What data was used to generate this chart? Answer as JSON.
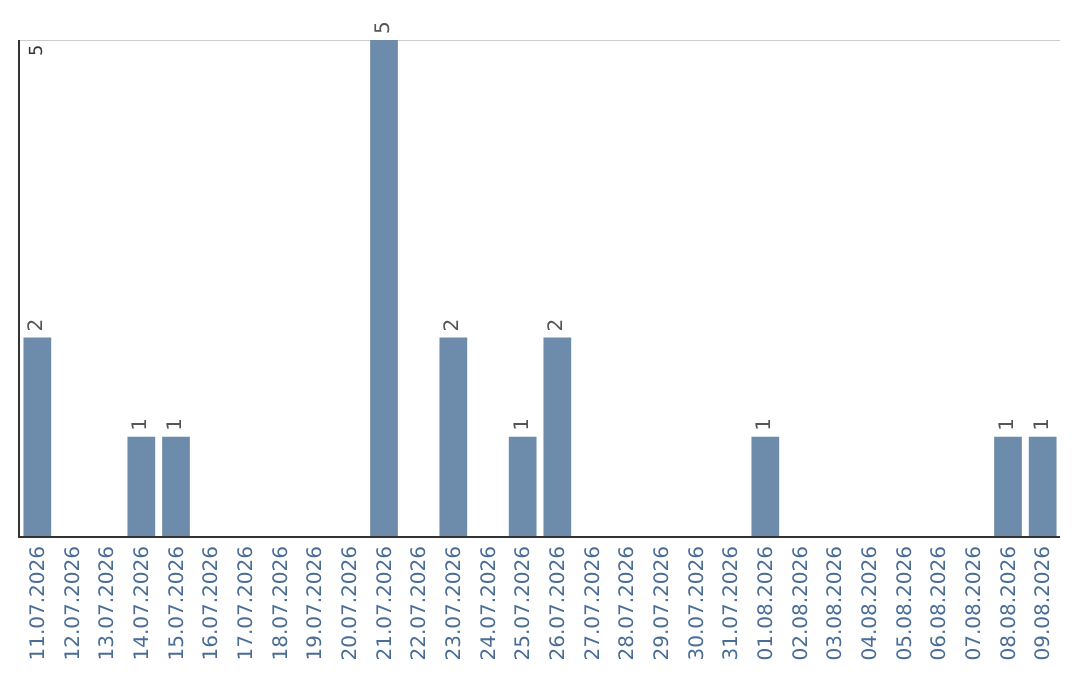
{
  "chart_data": {
    "type": "bar",
    "categories": [
      "11.07.2026",
      "12.07.2026",
      "13.07.2026",
      "14.07.2026",
      "15.07.2026",
      "16.07.2026",
      "17.07.2026",
      "18.07.2026",
      "19.07.2026",
      "20.07.2026",
      "21.07.2026",
      "22.07.2026",
      "23.07.2026",
      "24.07.2026",
      "25.07.2026",
      "26.07.2026",
      "27.07.2026",
      "28.07.2026",
      "29.07.2026",
      "30.07.2026",
      "31.07.2026",
      "01.08.2026",
      "02.08.2026",
      "03.08.2026",
      "04.08.2026",
      "05.08.2026",
      "06.08.2026",
      "07.08.2026",
      "08.08.2026",
      "09.08.2026"
    ],
    "values": [
      2,
      0,
      0,
      1,
      1,
      0,
      0,
      0,
      0,
      0,
      5,
      0,
      2,
      0,
      1,
      2,
      0,
      0,
      0,
      0,
      0,
      1,
      0,
      0,
      0,
      0,
      0,
      0,
      1,
      1
    ],
    "value_labels": [
      "2",
      null,
      null,
      "1",
      "1",
      null,
      null,
      null,
      null,
      null,
      "5",
      null,
      "2",
      null,
      "1",
      "2",
      null,
      null,
      null,
      null,
      null,
      "1",
      null,
      null,
      null,
      null,
      null,
      null,
      "1",
      "1"
    ],
    "color": "#6d8cab",
    "ylim": [
      0,
      5
    ],
    "ref_lines": [
      {
        "axis": "y",
        "value": 5,
        "label": "5",
        "color": "#cccccc"
      }
    ],
    "tick_labels": "x",
    "legend": false
  }
}
